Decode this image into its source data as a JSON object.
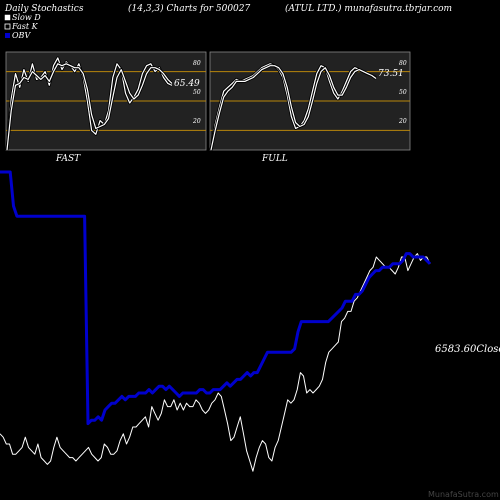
{
  "header": {
    "left": "Daily Stochastics",
    "center": "(14,3,3) Charts for 500027",
    "right": "(ATUL LTD.) munafasutra.tbrjar.com"
  },
  "legend": [
    {
      "label": "Slow  D",
      "swatch": "#ffffff"
    },
    {
      "label": "Fast K",
      "swatch": "#ffffff"
    },
    {
      "label": "OBV",
      "swatch": "#0000cc"
    }
  ],
  "colors": {
    "background": "#000000",
    "panel": "#222222",
    "level_line": "#b8860b",
    "stoch_line": "#ffffff",
    "obv": "#0000cc",
    "price": "#ffffff"
  },
  "watermark": "MunafaSutra.com",
  "chart_data": [
    {
      "type": "line",
      "panel_label": "FAST",
      "ylim": [
        0,
        100
      ],
      "levels": [
        80,
        50,
        20
      ],
      "level_labels": [
        "80",
        "50",
        "20"
      ],
      "last_value_label": "65.49",
      "series": [
        {
          "values": [
            0,
            52,
            78,
            64,
            82,
            70,
            88,
            72,
            74,
            80,
            66,
            86,
            94,
            82,
            90,
            86,
            80,
            88,
            74,
            50,
            20,
            16,
            30,
            26,
            40,
            74,
            88,
            82,
            58,
            48,
            54,
            62,
            78,
            86,
            88,
            80,
            84,
            74,
            68,
            66
          ]
        },
        {
          "values": [
            0,
            40,
            66,
            68,
            74,
            72,
            80,
            76,
            72,
            76,
            70,
            80,
            88,
            86,
            88,
            86,
            84,
            84,
            78,
            62,
            36,
            22,
            24,
            26,
            32,
            54,
            74,
            82,
            70,
            58,
            52,
            56,
            66,
            78,
            84,
            84,
            82,
            78,
            72,
            68
          ]
        }
      ]
    },
    {
      "type": "line",
      "panel_label": "FULL",
      "ylim": [
        0,
        100
      ],
      "levels": [
        80,
        50,
        20
      ],
      "level_labels": [
        "80",
        "50",
        "20"
      ],
      "last_value_label": "73.51",
      "series": [
        {
          "values": [
            0,
            26,
            44,
            60,
            64,
            68,
            72,
            70,
            72,
            74,
            76,
            80,
            84,
            86,
            88,
            86,
            82,
            74,
            56,
            34,
            22,
            24,
            30,
            42,
            60,
            78,
            86,
            84,
            70,
            58,
            52,
            60,
            70,
            80,
            84,
            82,
            80,
            78,
            76,
            74
          ]
        },
        {
          "values": [
            0,
            20,
            38,
            54,
            60,
            64,
            70,
            70,
            70,
            72,
            74,
            78,
            82,
            84,
            86,
            86,
            84,
            78,
            64,
            44,
            28,
            24,
            26,
            34,
            50,
            68,
            80,
            84,
            76,
            64,
            56,
            56,
            64,
            74,
            80,
            82,
            80,
            78,
            76,
            73
          ]
        }
      ]
    },
    {
      "type": "line",
      "ylim": [
        0,
        100
      ],
      "last_value_label": "6583.60Close",
      "series": [
        {
          "name": "OBV",
          "values": [
            95,
            95,
            95,
            95,
            85,
            82,
            82,
            82,
            82,
            82,
            82,
            82,
            82,
            82,
            82,
            82,
            82,
            82,
            82,
            82,
            82,
            82,
            82,
            82,
            82,
            82,
            21,
            22,
            22,
            23,
            22,
            25,
            26,
            27,
            27,
            28,
            29,
            28,
            29,
            29,
            29,
            30,
            30,
            30,
            31,
            30,
            31,
            32,
            32,
            31,
            32,
            31,
            30,
            29,
            30,
            30,
            30,
            30,
            30,
            31,
            31,
            30,
            30,
            31,
            31,
            31,
            32,
            33,
            32,
            33,
            34,
            34,
            35,
            36,
            35,
            36,
            36,
            38,
            40,
            42,
            42,
            42,
            42,
            42,
            42,
            42,
            42,
            43,
            48,
            51,
            51,
            51,
            51,
            51,
            51,
            51,
            51,
            51,
            52,
            53,
            54,
            55,
            57,
            57,
            57,
            59,
            59,
            60,
            62,
            64,
            65,
            66,
            66,
            67,
            67,
            67,
            68,
            68,
            68,
            69,
            71,
            71,
            70,
            70,
            70,
            70,
            69,
            68
          ]
        },
        {
          "name": "Close",
          "values": [
            18,
            17,
            15,
            15,
            12,
            12,
            13,
            14,
            17,
            14,
            13,
            12,
            15,
            11,
            10,
            9,
            10,
            14,
            17,
            14,
            13,
            12,
            11,
            11,
            10,
            11,
            12,
            13,
            14,
            12,
            11,
            10,
            11,
            15,
            14,
            12,
            12,
            13,
            16,
            18,
            15,
            17,
            20,
            20,
            21,
            22,
            23,
            20,
            26,
            24,
            22,
            24,
            28,
            26,
            26,
            28,
            25,
            27,
            25,
            27,
            26,
            26,
            28,
            27,
            25,
            24,
            25,
            27,
            28,
            30,
            29,
            25,
            21,
            16,
            17,
            20,
            23,
            18,
            13,
            10,
            7,
            11,
            14,
            16,
            15,
            11,
            10,
            14,
            16,
            20,
            24,
            28,
            27,
            28,
            31,
            36,
            35,
            30,
            31,
            30,
            31,
            32,
            34,
            39,
            42,
            43,
            44,
            45,
            51,
            52,
            54,
            54,
            57,
            58,
            60,
            62,
            64,
            66,
            67,
            70,
            69,
            68,
            67,
            67,
            66,
            65,
            67,
            70,
            70,
            66,
            68,
            70,
            71,
            69,
            70,
            70,
            68
          ]
        }
      ]
    }
  ]
}
